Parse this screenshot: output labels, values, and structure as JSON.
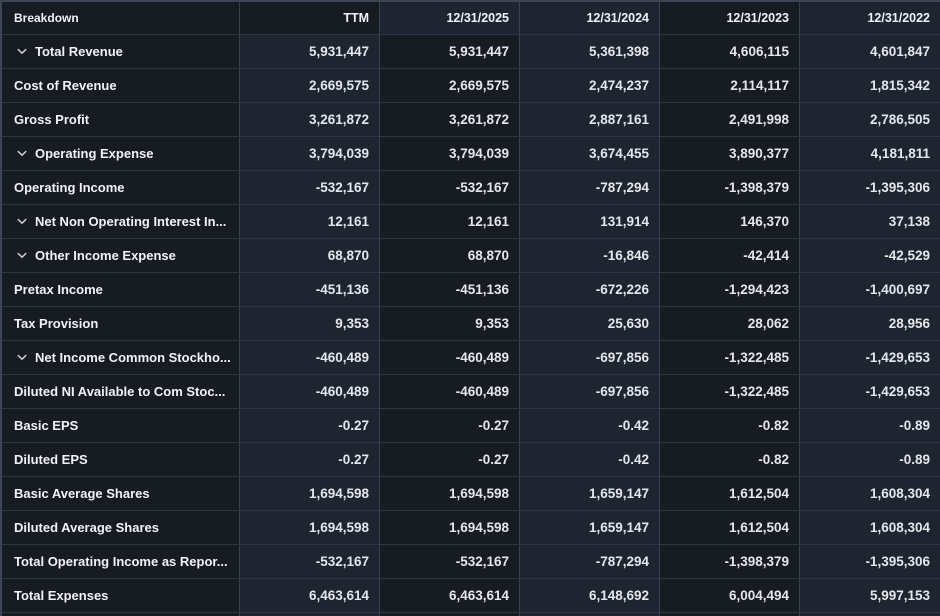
{
  "table": {
    "columns": [
      {
        "label": "Breakdown"
      },
      {
        "label": "TTM"
      },
      {
        "label": "12/31/2025"
      },
      {
        "label": "12/31/2024"
      },
      {
        "label": "12/31/2023"
      },
      {
        "label": "12/31/2022"
      }
    ],
    "header_stripe": [
      "dark",
      "dark",
      "light",
      "light",
      "dark",
      "light"
    ],
    "body_stripe": [
      "dark",
      "light",
      "dark",
      "light",
      "dark",
      "light"
    ],
    "rows": [
      {
        "label": "Total Revenue",
        "expandable": true,
        "values": [
          "5,931,447",
          "5,931,447",
          "5,361,398",
          "4,606,115",
          "4,601,847"
        ]
      },
      {
        "label": "Cost of Revenue",
        "expandable": false,
        "values": [
          "2,669,575",
          "2,669,575",
          "2,474,237",
          "2,114,117",
          "1,815,342"
        ]
      },
      {
        "label": "Gross Profit",
        "expandable": false,
        "values": [
          "3,261,872",
          "3,261,872",
          "2,887,161",
          "2,491,998",
          "2,786,505"
        ]
      },
      {
        "label": "Operating Expense",
        "expandable": true,
        "values": [
          "3,794,039",
          "3,794,039",
          "3,674,455",
          "3,890,377",
          "4,181,811"
        ]
      },
      {
        "label": "Operating Income",
        "expandable": false,
        "values": [
          "-532,167",
          "-532,167",
          "-787,294",
          "-1,398,379",
          "-1,395,306"
        ]
      },
      {
        "label": "Net Non Operating Interest In...",
        "expandable": true,
        "values": [
          "12,161",
          "12,161",
          "131,914",
          "146,370",
          "37,138"
        ]
      },
      {
        "label": "Other Income Expense",
        "expandable": true,
        "values": [
          "68,870",
          "68,870",
          "-16,846",
          "-42,414",
          "-42,529"
        ]
      },
      {
        "label": "Pretax Income",
        "expandable": false,
        "values": [
          "-451,136",
          "-451,136",
          "-672,226",
          "-1,294,423",
          "-1,400,697"
        ]
      },
      {
        "label": "Tax Provision",
        "expandable": false,
        "values": [
          "9,353",
          "9,353",
          "25,630",
          "28,062",
          "28,956"
        ]
      },
      {
        "label": "Net Income Common Stockho...",
        "expandable": true,
        "values": [
          "-460,489",
          "-460,489",
          "-697,856",
          "-1,322,485",
          "-1,429,653"
        ]
      },
      {
        "label": "Diluted NI Available to Com Stoc...",
        "expandable": false,
        "values": [
          "-460,489",
          "-460,489",
          "-697,856",
          "-1,322,485",
          "-1,429,653"
        ]
      },
      {
        "label": "Basic EPS",
        "expandable": false,
        "values": [
          "-0.27",
          "-0.27",
          "-0.42",
          "-0.82",
          "-0.89"
        ]
      },
      {
        "label": "Diluted EPS",
        "expandable": false,
        "values": [
          "-0.27",
          "-0.27",
          "-0.42",
          "-0.82",
          "-0.89"
        ]
      },
      {
        "label": "Basic Average Shares",
        "expandable": false,
        "values": [
          "1,694,598",
          "1,694,598",
          "1,659,147",
          "1,612,504",
          "1,608,304"
        ]
      },
      {
        "label": "Diluted Average Shares",
        "expandable": false,
        "values": [
          "1,694,598",
          "1,694,598",
          "1,659,147",
          "1,612,504",
          "1,608,304"
        ]
      },
      {
        "label": "Total Operating Income as Repor...",
        "expandable": false,
        "values": [
          "-532,167",
          "-532,167",
          "-787,294",
          "-1,398,379",
          "-1,395,306"
        ]
      },
      {
        "label": "Total Expenses",
        "expandable": false,
        "values": [
          "6,463,614",
          "6,463,614",
          "6,148,692",
          "6,004,494",
          "5,997,153"
        ]
      }
    ]
  },
  "icons": {
    "expand_chevron": "chevron-down-icon"
  },
  "colors": {
    "cell_dark": "#171b22",
    "cell_light": "#1f2530",
    "row_border": "#2f3540",
    "column_border": "#3a414e",
    "outer_border": "#3e4552",
    "label_text": "#f0f3f7",
    "number_text": "#e4e7ec",
    "chevron": "#ccd1d8"
  }
}
